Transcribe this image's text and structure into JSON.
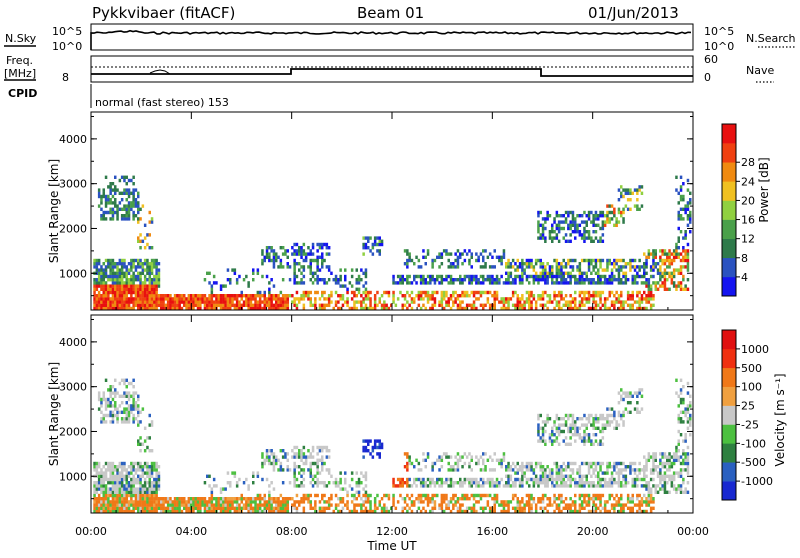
{
  "header": {
    "station": "Pykkvibaer (fitACF)",
    "beam": "Beam 01",
    "date": "01/Jun/2013"
  },
  "strip": {
    "nsky_label": "N.Sky",
    "nsky_ticks": [
      "10^5",
      "10^0"
    ],
    "nsearch_label": "N.Search",
    "nsearch_ticks": [
      "10^5",
      "10^0"
    ],
    "freq_label": "Freq.",
    "freq_unit": "[MHz]",
    "freq_ticks": [
      "8"
    ],
    "nave_label": "Nave",
    "nave_ticks": [
      "60",
      "0"
    ],
    "cpid_label": "CPID",
    "cpid_text": "normal (fast stereo) 153"
  },
  "chart_data": [
    {
      "type": "heatmap",
      "name": "power",
      "ylabel": "Slant Range [km]",
      "xlabel": "",
      "yticks": [
        "1000",
        "2000",
        "3000",
        "4000"
      ],
      "ylim": [
        180,
        4600
      ],
      "colorbar": {
        "label": "Power [dB]",
        "ticks": [
          "4",
          "8",
          "12",
          "16",
          "20",
          "24",
          "28"
        ],
        "colors": [
          "#1414f0",
          "#2a52c0",
          "#2e7a4a",
          "#4aa04a",
          "#90d040",
          "#f0c020",
          "#f08a10",
          "#f04010",
          "#e81010"
        ]
      }
    },
    {
      "type": "heatmap",
      "name": "velocity",
      "ylabel": "Slant Range [km]",
      "xlabel": "Time UT",
      "yticks": [
        "1000",
        "2000",
        "3000",
        "4000"
      ],
      "ylim": [
        180,
        4600
      ],
      "xticks": [
        "00:00",
        "04:00",
        "08:00",
        "12:00",
        "16:00",
        "20:00",
        "00:00"
      ],
      "colorbar": {
        "label": "Velocity [m s⁻¹]",
        "ticks": [
          "1000",
          "500",
          "100",
          "25",
          "-25",
          "-100",
          "-500",
          "-1000"
        ],
        "colors": [
          "#1828d0",
          "#2a60c0",
          "#2e8040",
          "#4cc040",
          "#c8c8c8",
          "#f0a040",
          "#f07818",
          "#f03010",
          "#e01010"
        ]
      }
    }
  ]
}
